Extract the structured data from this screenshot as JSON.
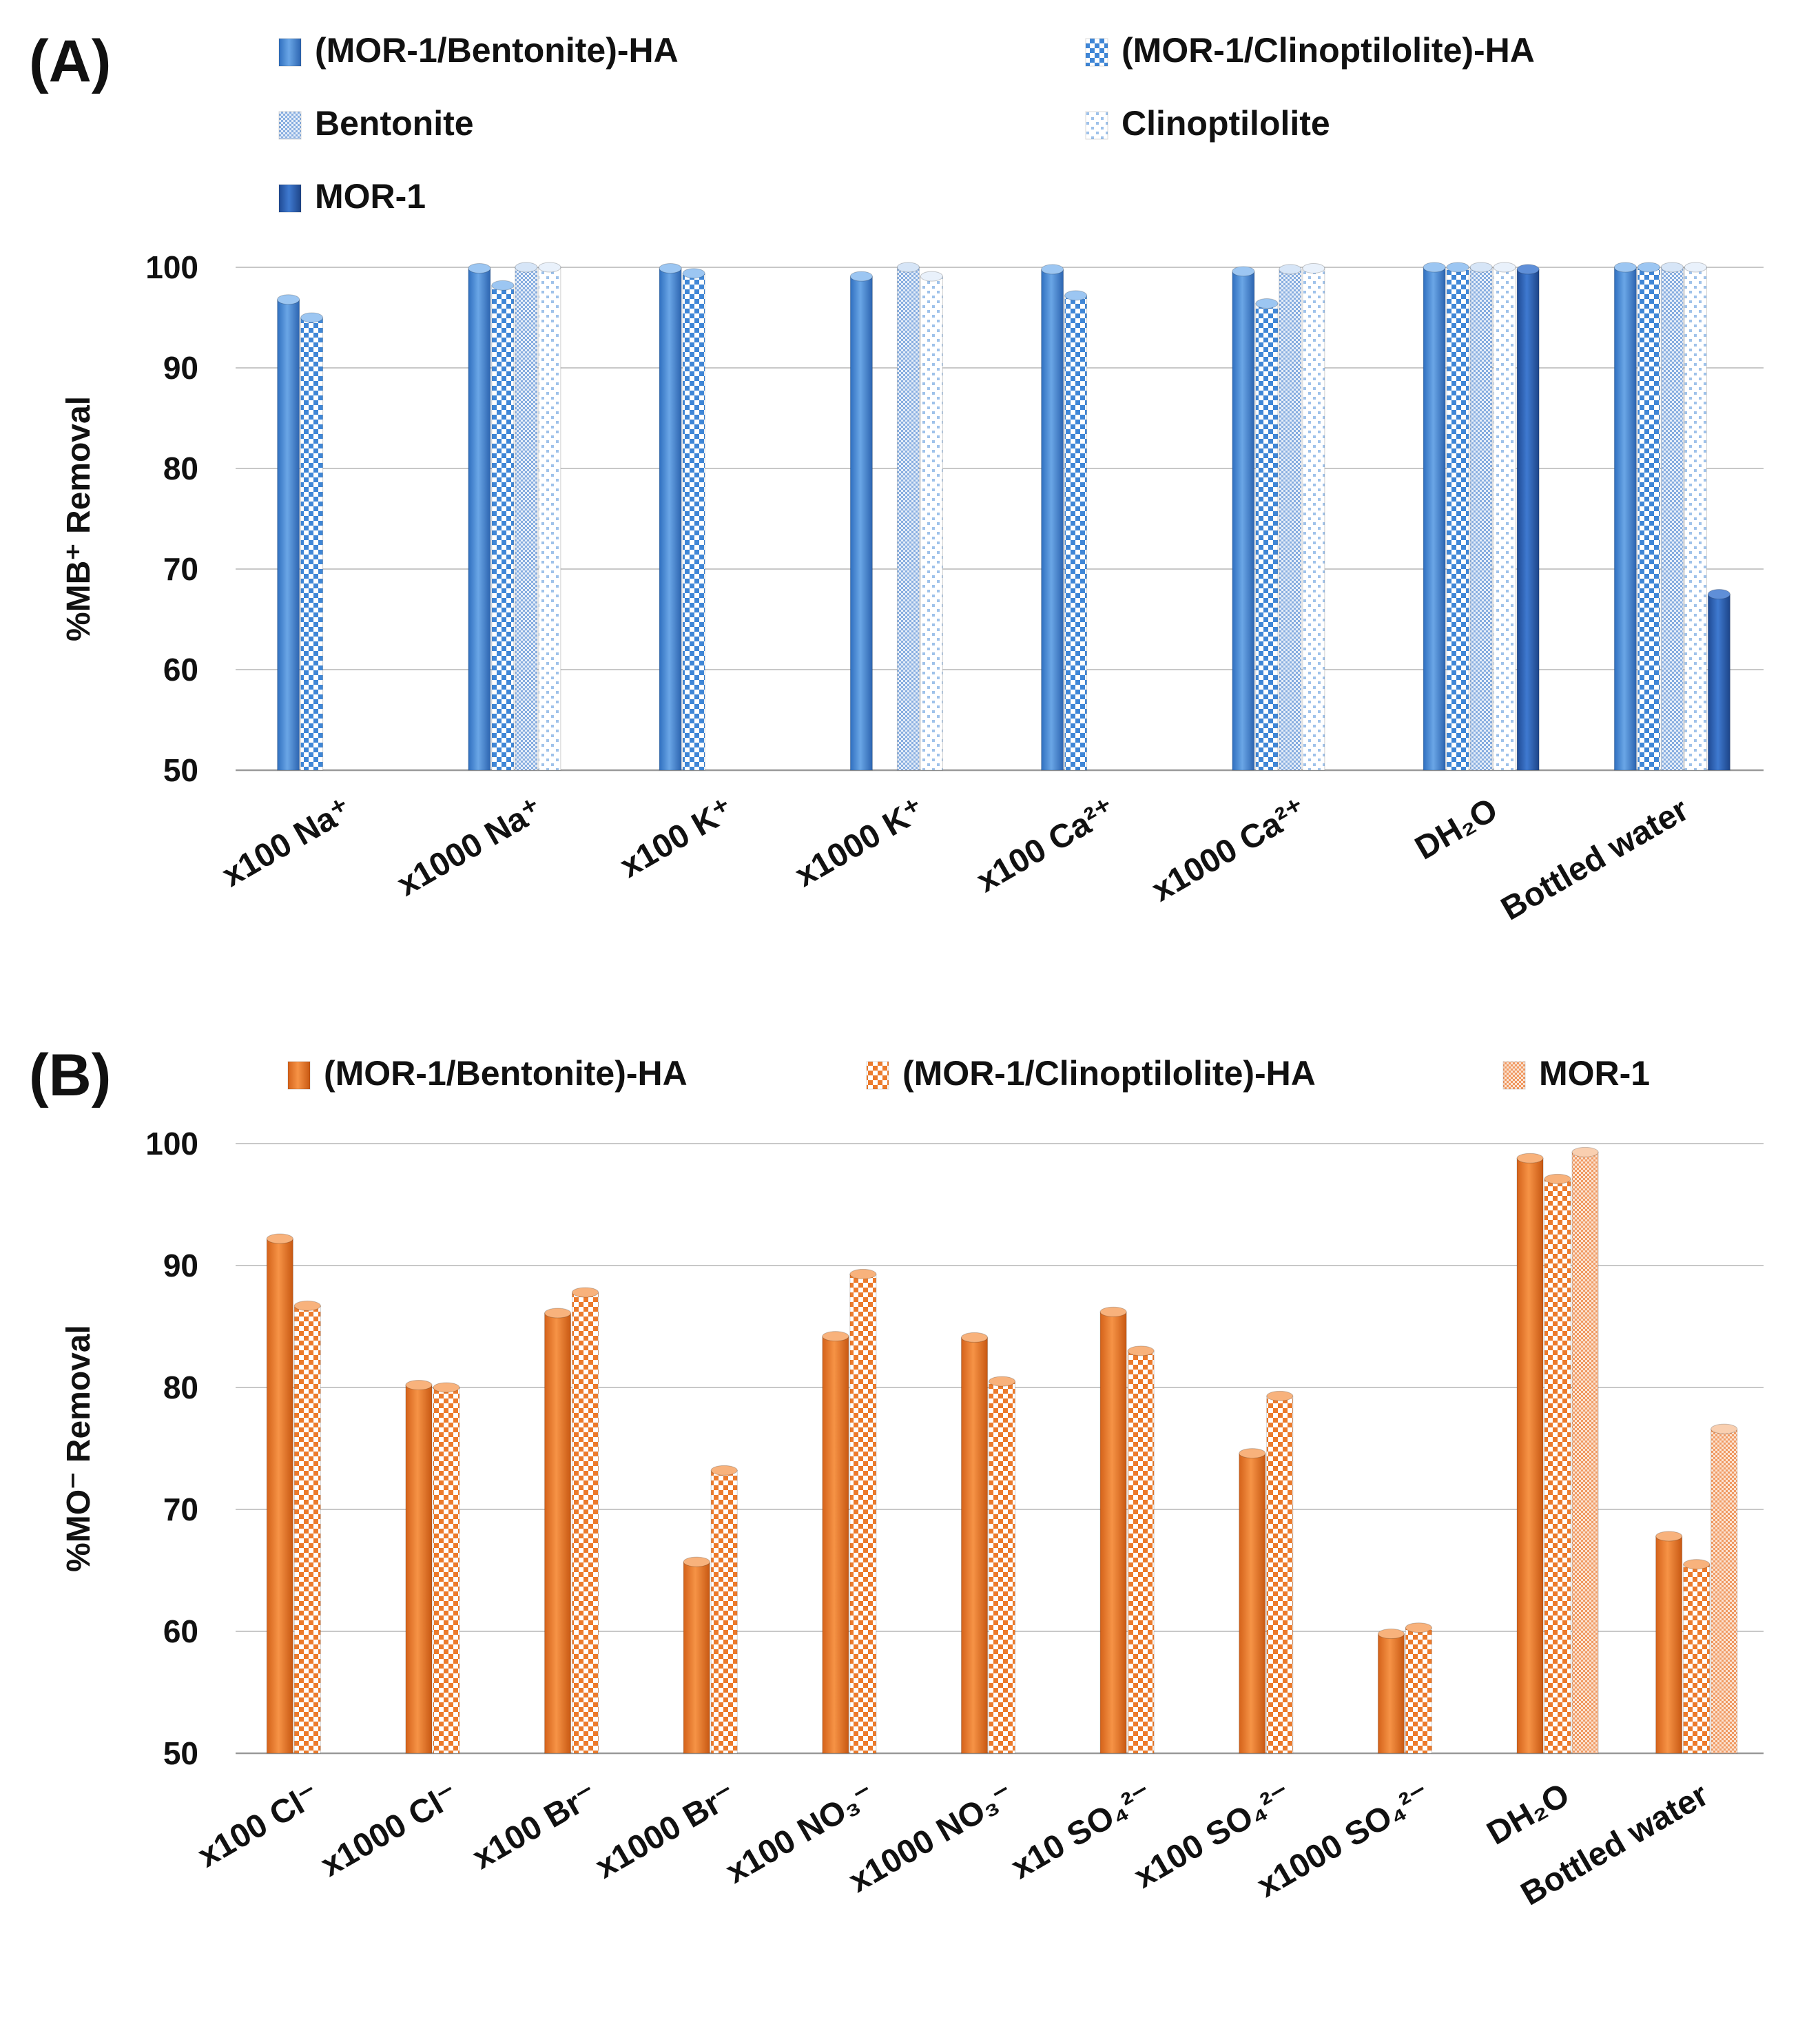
{
  "chart_data": [
    {
      "type": "bar",
      "panel_label": "(A)",
      "title": "",
      "xlabel": "",
      "ylabel": "%MB⁺ Removal",
      "ylim": [
        50,
        100
      ],
      "yticks": [
        "50",
        "60",
        "70",
        "80",
        "90",
        "100"
      ],
      "grid": true,
      "legend_position": "top",
      "categories": [
        "x100 Na⁺",
        "x1000 Na⁺",
        "x100 K⁺",
        "x1000 K⁺",
        "x100 Ca²⁺",
        "x1000 Ca²⁺",
        "DH₂O",
        "Bottled water"
      ],
      "series": [
        {
          "name": "(MOR-1/Bentonite)-HA",
          "pattern": "solid",
          "color": "#4a8fd8",
          "values": [
            96.8,
            99.9,
            99.9,
            99.1,
            99.8,
            99.6,
            100.0,
            100.0
          ]
        },
        {
          "name": "(MOR-1/Clinoptilolite)-HA",
          "pattern": "checker",
          "color": "#4a8fd8",
          "values": [
            95.0,
            98.2,
            99.4,
            null,
            97.2,
            96.4,
            100.0,
            100.0
          ]
        },
        {
          "name": "Bentonite",
          "pattern": "fine",
          "color": "#8fb6e4",
          "values": [
            null,
            100.0,
            null,
            100.0,
            null,
            99.8,
            100.0,
            100.0
          ]
        },
        {
          "name": "Clinoptilolite",
          "pattern": "sparse",
          "color": "#b9d3f0",
          "values": [
            null,
            100.0,
            null,
            99.1,
            null,
            99.9,
            100.0,
            100.0
          ]
        },
        {
          "name": "MOR-1",
          "pattern": "solid",
          "color": "#2c5fb6",
          "values": [
            null,
            null,
            null,
            null,
            null,
            null,
            99.8,
            67.5
          ]
        }
      ]
    },
    {
      "type": "bar",
      "panel_label": "(B)",
      "title": "",
      "xlabel": "",
      "ylabel": "%MO⁻ Removal",
      "ylim": [
        50,
        100
      ],
      "yticks": [
        "50",
        "60",
        "70",
        "80",
        "90",
        "100"
      ],
      "grid": true,
      "legend_position": "top",
      "categories": [
        "x100 Cl⁻",
        "x1000 Cl⁻",
        "x100 Br⁻",
        "x1000 Br⁻",
        "x100 NO₃⁻",
        "x1000 NO₃⁻",
        "x10 SO₄²⁻",
        "x100 SO₄²⁻",
        "x1000 SO₄²⁻",
        "DH₂O",
        "Bottled water"
      ],
      "series": [
        {
          "name": "(MOR-1/Bentonite)-HA",
          "pattern": "solid",
          "color": "#ec7a2b",
          "values": [
            92.2,
            80.2,
            86.1,
            65.7,
            84.2,
            84.1,
            86.2,
            74.6,
            59.8,
            98.8,
            67.8
          ]
        },
        {
          "name": "(MOR-1/Clinoptilolite)-HA",
          "pattern": "checker",
          "color": "#ec7a2b",
          "values": [
            86.7,
            80.0,
            87.8,
            73.2,
            89.3,
            80.5,
            83.0,
            79.3,
            60.3,
            97.1,
            65.5
          ]
        },
        {
          "name": "MOR-1",
          "pattern": "fine",
          "color": "#f0a070",
          "values": [
            null,
            null,
            null,
            null,
            null,
            null,
            null,
            null,
            null,
            99.3,
            76.6
          ]
        }
      ]
    }
  ]
}
